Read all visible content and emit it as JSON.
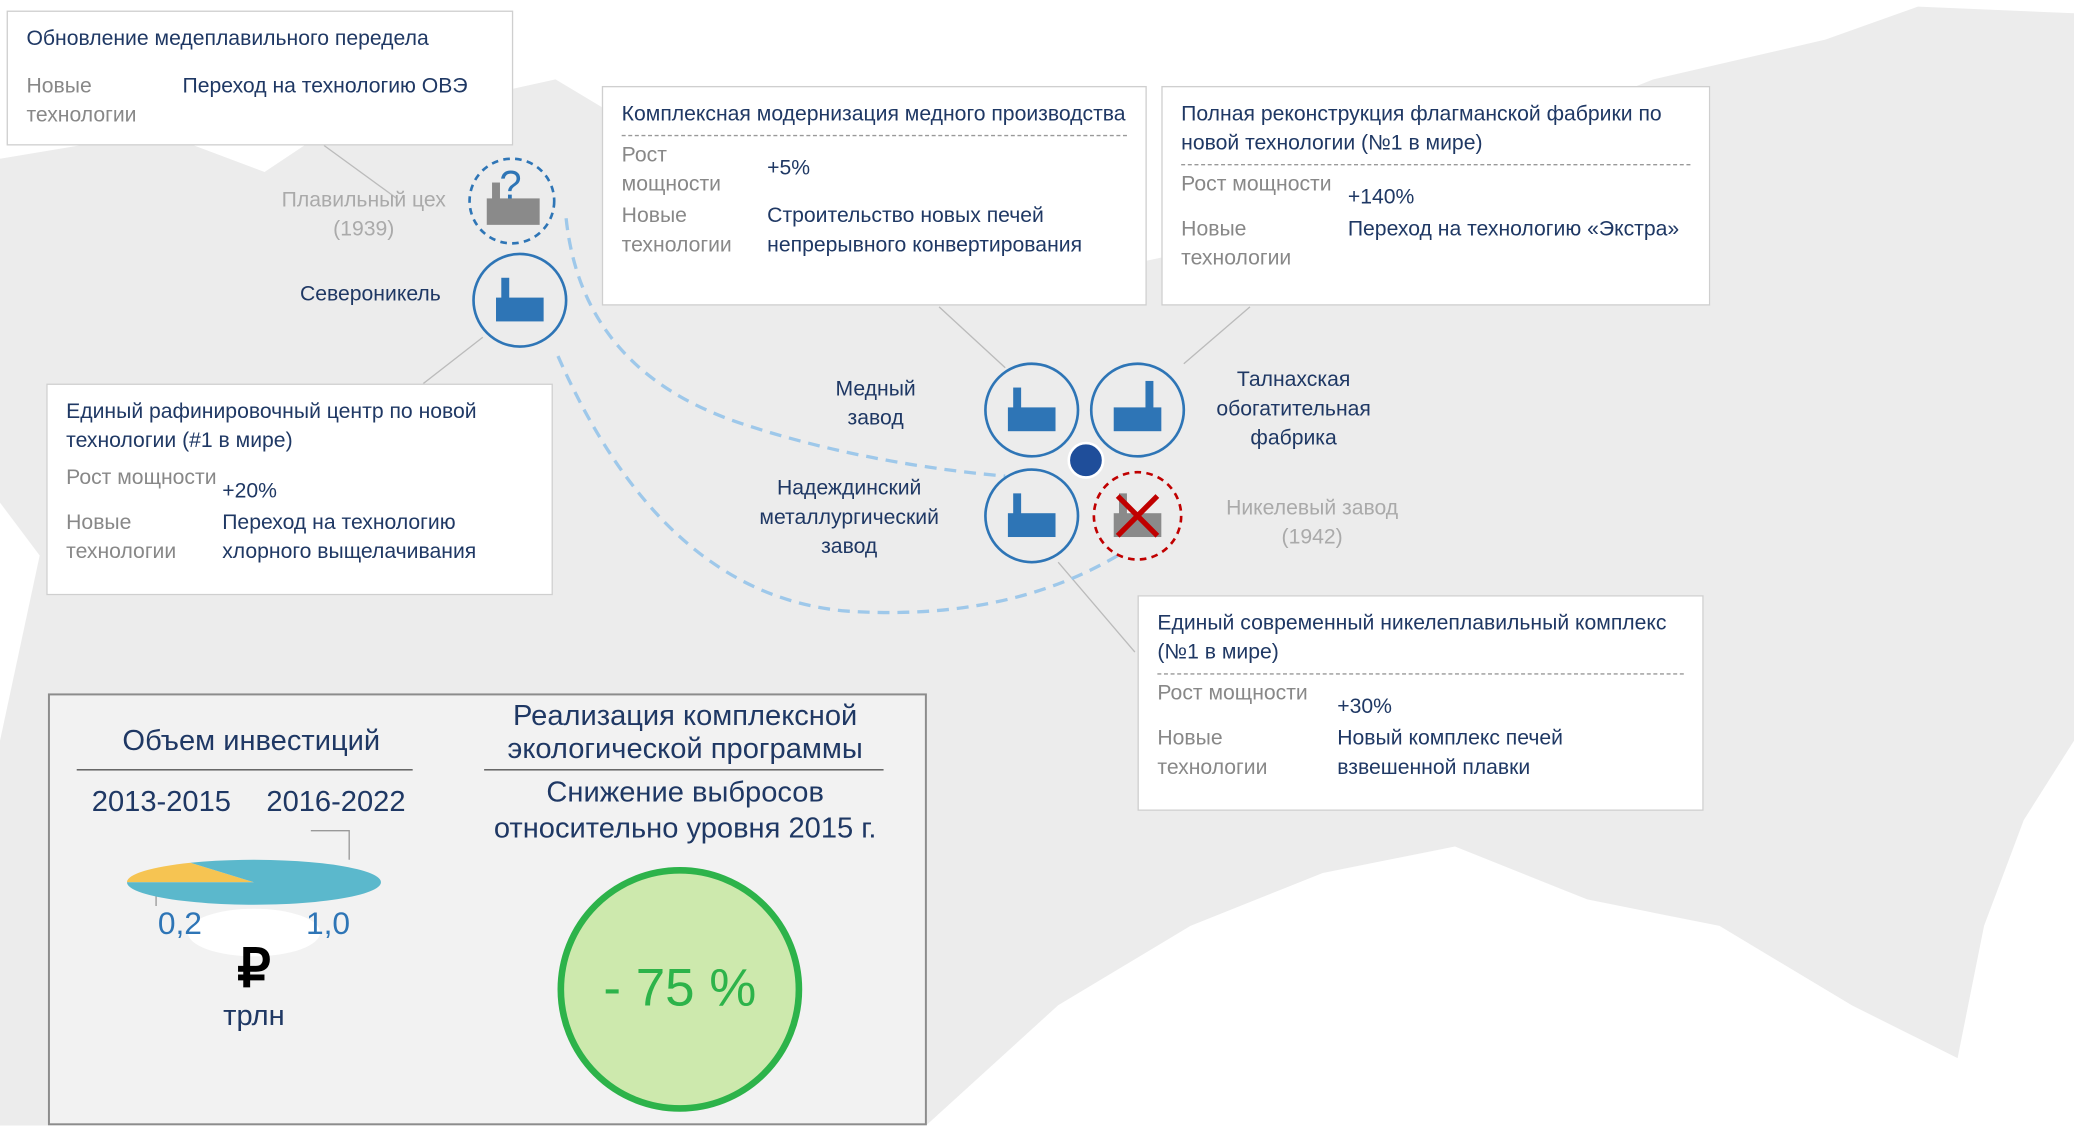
{
  "callouts": [
    {
      "title": "Обновление медеплавильного передела",
      "rows": [
        [
          "Новые технологии",
          "Переход на технологию ОВЭ"
        ]
      ]
    },
    {
      "title": "Комплексная модернизация медного производства",
      "rows": [
        [
          "Рост мощности",
          "+5%"
        ],
        [
          "Новые технологии",
          "Строительство новых печей непрерывного конвертирования"
        ]
      ]
    },
    {
      "title": "Полная реконструкция флагманской  фабрики по новой технологии (№1 в мире)",
      "rows": [
        [
          "Рост мощности",
          "+140%"
        ],
        [
          "Новые технологии",
          "Переход на технологию «Экстра»"
        ]
      ]
    },
    {
      "title": "Единый рафинировочный центр по новой технологии (#1 в мире)",
      "rows": [
        [
          "Рост мощности",
          "+20%"
        ],
        [
          "Новые технологии",
          "Переход на технологию хлорного выщелачивания"
        ]
      ]
    },
    {
      "title": "Единый современный никелеплавильный комплекс (№1 в мире)",
      "rows": [
        [
          "Рост мощности",
          "+30%"
        ],
        [
          "Новые технологии",
          "Новый комплекс печей взвешенной плавки"
        ]
      ]
    }
  ],
  "plants": [
    {
      "name": "Плавильный цех",
      "year": "(1939)"
    },
    {
      "name": "Североникель"
    },
    {
      "name": "Медный завод"
    },
    {
      "name": "Талнахская обогатительная фабрика"
    },
    {
      "name": "Надеждинский металлургический завод"
    },
    {
      "name": "Никелевый завод",
      "year": "(1942)"
    }
  ],
  "investment": {
    "title": "Объем инвестиций",
    "periods": [
      "2013-2015",
      "2016-2022"
    ],
    "values": [
      0.2,
      1.0
    ],
    "value_labels": [
      "0,2",
      "1,0"
    ],
    "colors": [
      "#f6c452",
      "#5bb8cc"
    ],
    "currency": "₽",
    "unit": "трлн"
  },
  "eco": {
    "title": "Реализация комплексной экологической программы",
    "subtitle": "Снижение выбросов относительно уровня 2015 г.",
    "value": "- 75 %"
  }
}
